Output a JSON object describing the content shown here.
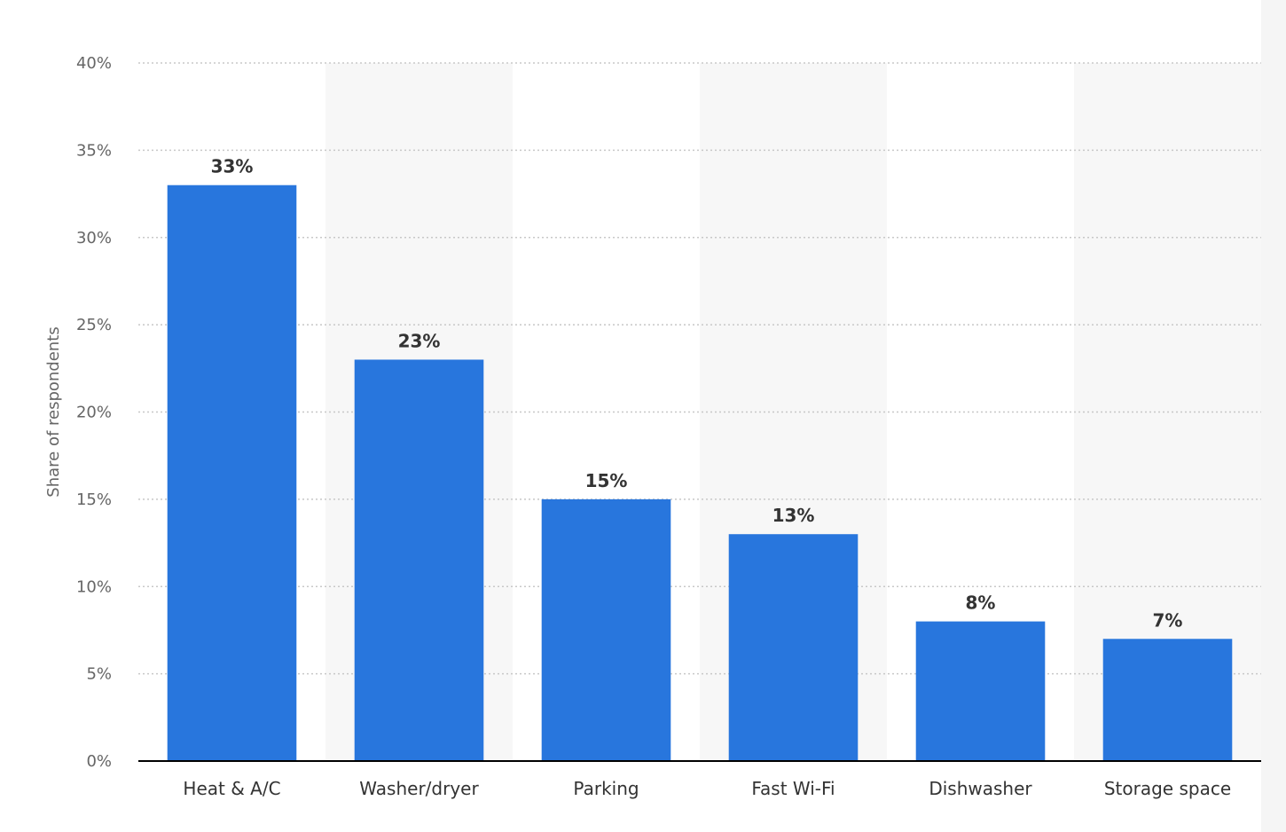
{
  "chart_data": {
    "type": "bar",
    "title": "",
    "xlabel": "",
    "ylabel": "Share of respondents",
    "categories": [
      "Heat & A/C",
      "Washer/dryer",
      "Parking",
      "Fast Wi-Fi",
      "Dishwasher",
      "Storage space"
    ],
    "values": [
      33,
      23,
      15,
      13,
      8,
      7
    ],
    "value_labels": [
      "33%",
      "23%",
      "15%",
      "13%",
      "8%",
      "7%"
    ],
    "ylim": [
      0,
      40
    ],
    "yticks": [
      0,
      5,
      10,
      15,
      20,
      25,
      30,
      35,
      40
    ],
    "ytick_labels": [
      "0%",
      "5%",
      "10%",
      "15%",
      "20%",
      "25%",
      "30%",
      "35%",
      "40%"
    ],
    "grid": true,
    "alternating_band_shading": true,
    "colors": {
      "bar": "#2876dd",
      "band": "#f7f7f7",
      "grid": "#c8c8c8",
      "axis": "#000000"
    }
  }
}
